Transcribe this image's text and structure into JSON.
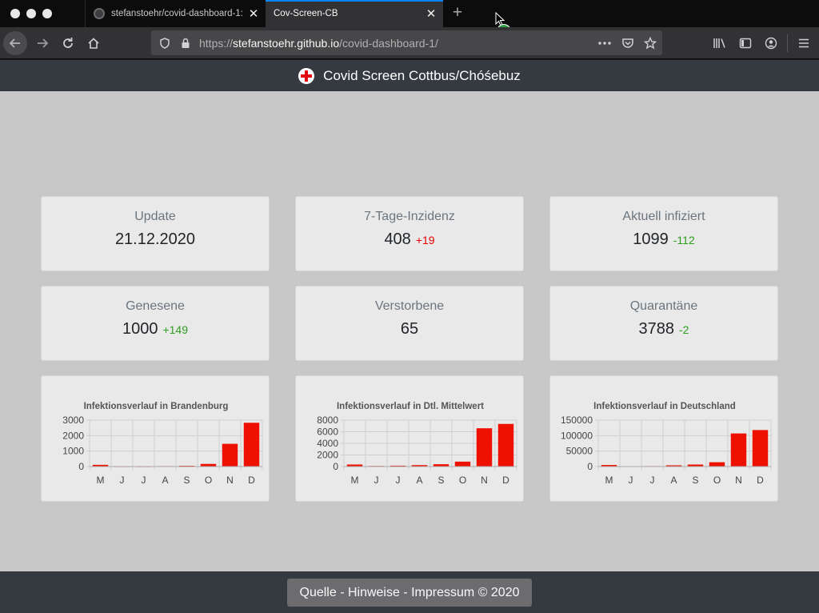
{
  "browser": {
    "tabs": [
      {
        "title": "stefanstoehr/covid-dashboard-1: ",
        "active": false
      },
      {
        "title": "Cov-Screen-CB",
        "active": true
      }
    ],
    "url_prefix": "https://",
    "url_host": "stefanstoehr.github.io",
    "url_path": "/covid-dashboard-1/"
  },
  "app": {
    "title": "Covid Screen Cottbus/Chóśebuz"
  },
  "stats": [
    {
      "label": "Update",
      "value": "21.12.2020",
      "delta": ""
    },
    {
      "label": "7-Tage-Inzidenz",
      "value": "408",
      "delta": "+19"
    },
    {
      "label": "Aktuell infiziert",
      "value": "1099",
      "delta": "-112"
    },
    {
      "label": "Genesene",
      "value": "1000",
      "delta": "+149"
    },
    {
      "label": "Verstorbene",
      "value": "65",
      "delta": ""
    },
    {
      "label": "Quarantäne",
      "value": "3788",
      "delta": "-2"
    }
  ],
  "colors": {
    "bar": "#ee1100",
    "delta_up": "#e60000",
    "delta_down": "#2e9e1e"
  },
  "footer": {
    "text": "Quelle - Hinweise - Impressum © 2020"
  },
  "chart_data": [
    {
      "type": "bar",
      "title": "Infektionsverlauf in Brandenburg",
      "categories": [
        "M",
        "J",
        "J",
        "A",
        "S",
        "O",
        "N",
        "D"
      ],
      "values": [
        110,
        10,
        10,
        30,
        50,
        170,
        1470,
        2830
      ],
      "yticks": [
        "3000",
        "2000",
        "1000",
        "0"
      ],
      "ylim": [
        0,
        3000
      ]
    },
    {
      "type": "bar",
      "title": "Infektionsverlauf in Dtl. Mittelwert",
      "categories": [
        "M",
        "J",
        "J",
        "A",
        "S",
        "O",
        "N",
        "D"
      ],
      "values": [
        350,
        100,
        150,
        250,
        400,
        850,
        6600,
        7350
      ],
      "yticks": [
        "8000",
        "6000",
        "4000",
        "2000",
        "0"
      ],
      "ylim": [
        0,
        8000
      ]
    },
    {
      "type": "bar",
      "title": "Infektionsverlauf in Deutschland",
      "categories": [
        "M",
        "J",
        "J",
        "A",
        "S",
        "O",
        "N",
        "D"
      ],
      "values": [
        5000,
        1000,
        1500,
        4000,
        6500,
        14000,
        107000,
        118000
      ],
      "yticks": [
        "150000",
        "100000",
        "50000",
        "0"
      ],
      "ylim": [
        0,
        150000
      ]
    }
  ]
}
